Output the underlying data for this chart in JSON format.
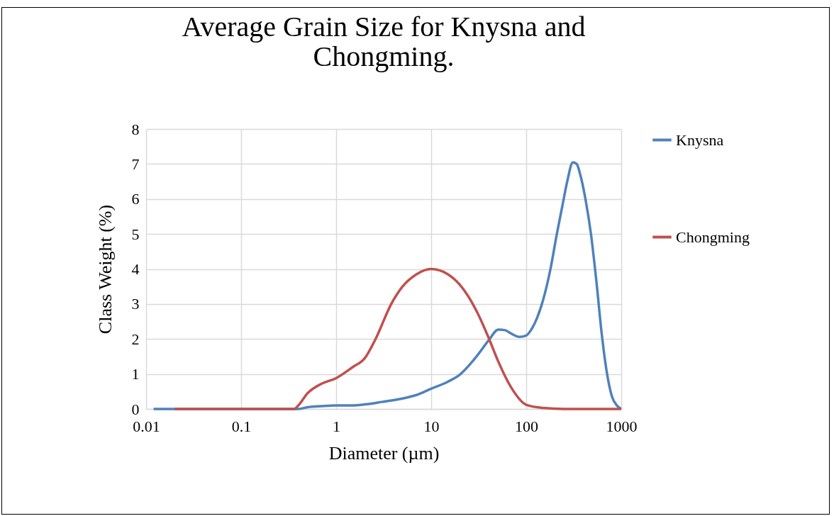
{
  "chart_data": {
    "type": "line",
    "title": "Average Grain Size for Knysna and Chongming.",
    "xlabel": "Diameter (µm)",
    "ylabel": "Class Weight (%)",
    "log": "x",
    "xlim": [
      0.01,
      1000
    ],
    "xticks": [
      0.01,
      0.1,
      1,
      10,
      100,
      1000
    ],
    "ylim": [
      0,
      8
    ],
    "yticks": [
      0,
      1,
      2,
      3,
      4,
      5,
      6,
      7,
      8
    ],
    "grid": true,
    "legend": "right",
    "series": [
      {
        "name": "Knysna",
        "color": "#4f81bd",
        "x": [
          0.012,
          0.1,
          0.4,
          0.5,
          0.7,
          1,
          1.5,
          2,
          3,
          5,
          7,
          10,
          15,
          20,
          30,
          40,
          51,
          60,
          70,
          85,
          100,
          115,
          130,
          150,
          180,
          210,
          240,
          270,
          310,
          340,
          370,
          420,
          480,
          550,
          620,
          700,
          800,
          900,
          1000
        ],
        "values": [
          0,
          0,
          0,
          0.05,
          0.08,
          0.1,
          0.1,
          0.13,
          0.2,
          0.3,
          0.4,
          0.58,
          0.78,
          0.98,
          1.5,
          1.95,
          2.27,
          2.25,
          2.15,
          2.06,
          2.1,
          2.3,
          2.6,
          3.1,
          4.0,
          5.0,
          5.8,
          6.5,
          7.05,
          7.0,
          6.7,
          6.0,
          5.0,
          3.6,
          2.2,
          1.1,
          0.35,
          0.1,
          0
        ]
      },
      {
        "name": "Chongming",
        "color": "#c0504d",
        "x": [
          0.02,
          0.1,
          0.36,
          0.4,
          0.5,
          0.7,
          1,
          1.5,
          2,
          2.6,
          3.8,
          5,
          7,
          10,
          15,
          20,
          30,
          40,
          50,
          70,
          100,
          150,
          250,
          1000
        ],
        "values": [
          0,
          0,
          0,
          0.1,
          0.45,
          0.72,
          0.88,
          1.2,
          1.45,
          2,
          3,
          3.5,
          3.85,
          4.0,
          3.85,
          3.55,
          2.8,
          2.05,
          1.4,
          0.6,
          0.12,
          0.03,
          0,
          0
        ]
      }
    ]
  }
}
